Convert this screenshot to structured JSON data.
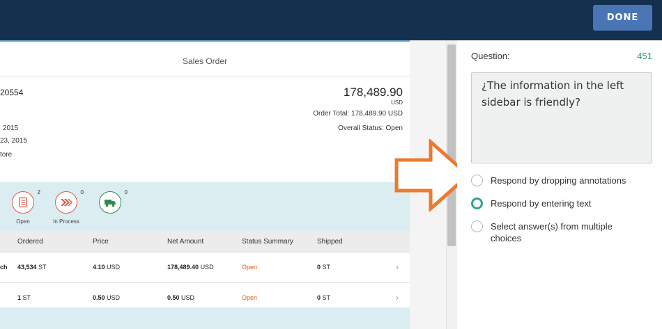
{
  "header": {
    "done_label": "DONE"
  },
  "sales_order": {
    "title": "Sales Order",
    "order_number_fragment": "20554",
    "total": "178,489.90",
    "currency": "USD",
    "order_total": "Order Total: 178,489.90 USD",
    "overall_status": "Overall Status: Open",
    "info_lines": [
      "2015",
      "23, 2015",
      "tore"
    ],
    "processes": [
      {
        "label": "Open",
        "count": "2",
        "icon": "checklist-icon",
        "color": "#e0574a"
      },
      {
        "label": "In Process",
        "count": "0",
        "icon": "chevrons-icon",
        "color": "#e0574a"
      },
      {
        "label": "",
        "count": "0",
        "icon": "truck-icon",
        "color": "#2f8a4e"
      }
    ],
    "columns": [
      "Ordered",
      "Price",
      "Net Amount",
      "Status Summary",
      "Shipped"
    ],
    "rows": [
      {
        "prefix": "ch",
        "ordered": "43,534",
        "ordered_unit": "ST",
        "price": "4.10",
        "price_unit": "USD",
        "net": "178,489.40",
        "net_unit": "USD",
        "status": "Open",
        "shipped": "0",
        "shipped_unit": "ST"
      },
      {
        "prefix": "",
        "ordered": "1",
        "ordered_unit": "ST",
        "price": "0.50",
        "price_unit": "USD",
        "net": "0.50",
        "net_unit": "USD",
        "status": "Open",
        "shipped": "0",
        "shipped_unit": "ST"
      }
    ]
  },
  "question": {
    "label": "Question:",
    "number": "451",
    "text": "¿The information in the left sidebar is friendly?",
    "options": [
      {
        "label": "Respond by dropping annotations",
        "selected": false
      },
      {
        "label": "Respond by entering text",
        "selected": true
      },
      {
        "label": "Select answer(s) from multiple choices",
        "selected": false
      }
    ]
  },
  "colors": {
    "topbar": "#14304f",
    "done": "#4a75b5",
    "accent_green": "#2ea58f",
    "arrow": "#ec7a2e",
    "status_open": "#e25a19"
  }
}
